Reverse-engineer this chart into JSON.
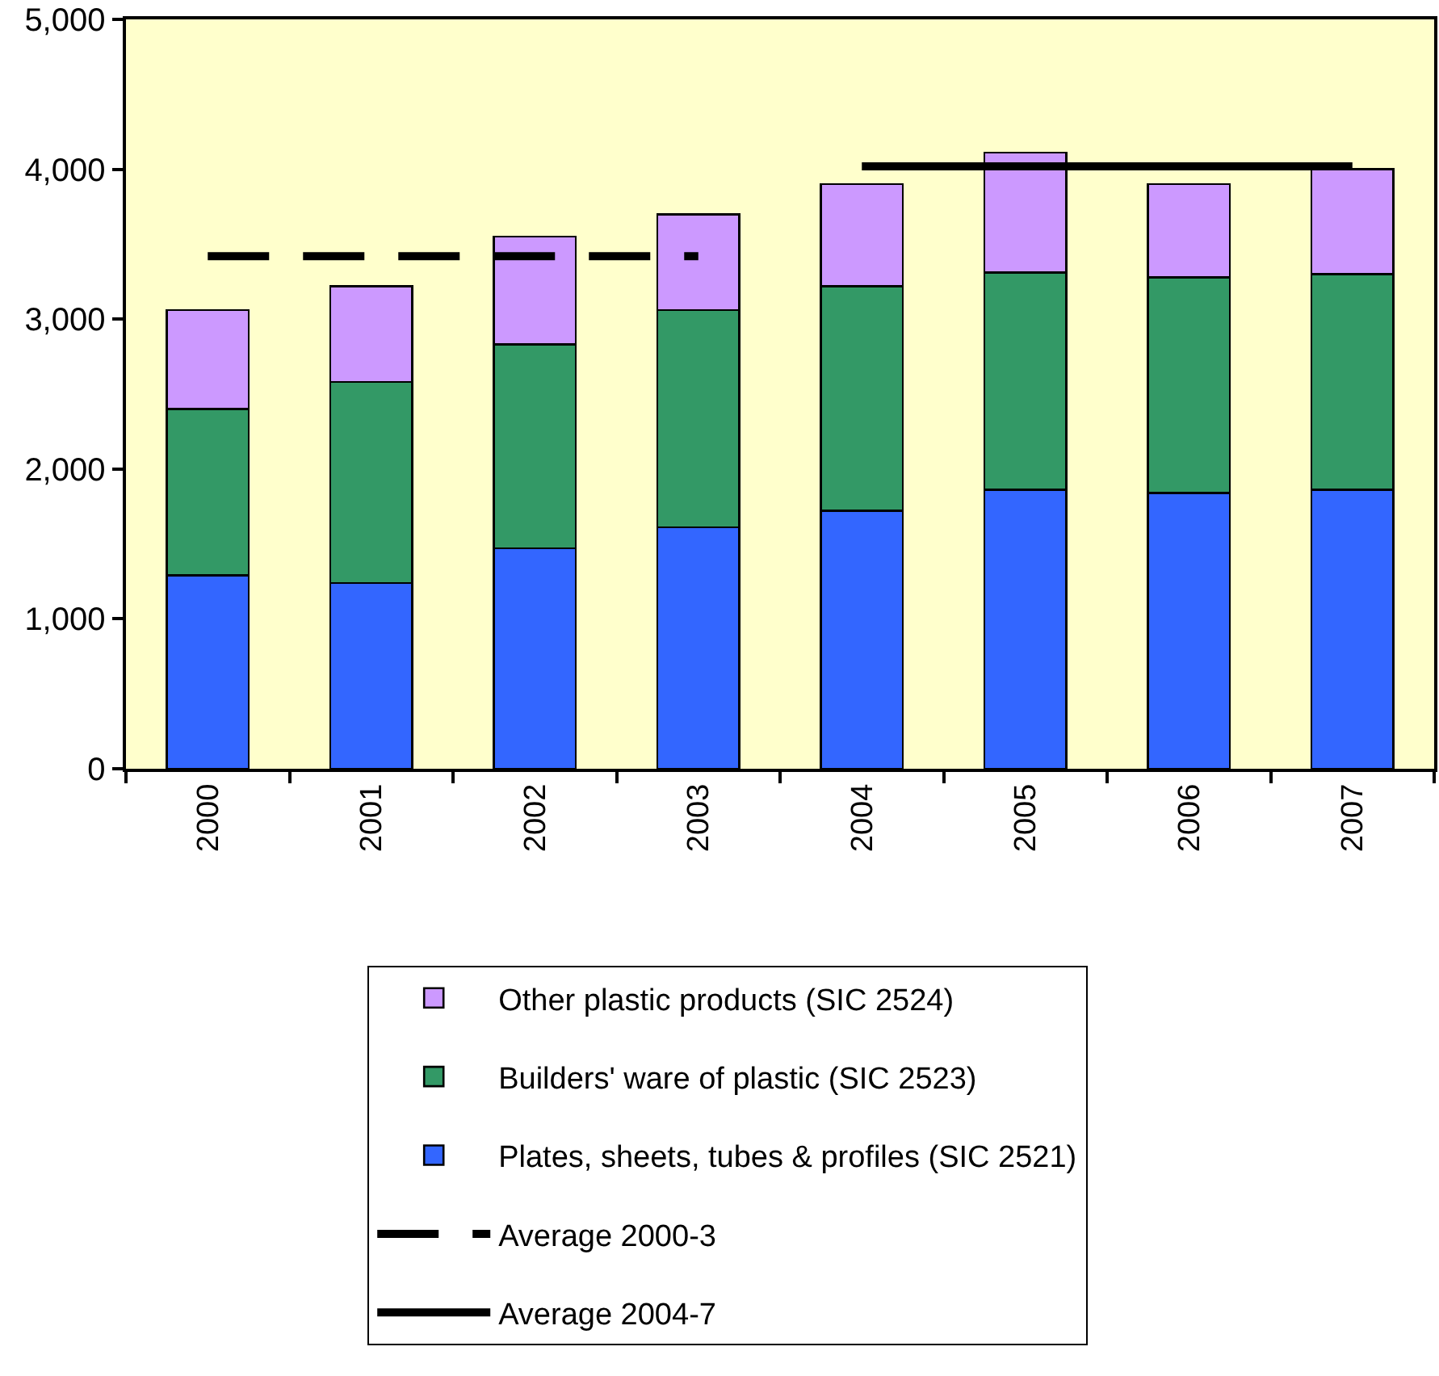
{
  "chart_data": {
    "type": "bar",
    "stacked": true,
    "categories": [
      "2000",
      "2001",
      "2002",
      "2003",
      "2004",
      "2005",
      "2006",
      "2007"
    ],
    "series": [
      {
        "name": "Plates, sheets, tubes & profiles (SIC 2521)",
        "color": "#3366ff",
        "values": [
          1290,
          1240,
          1470,
          1610,
          1720,
          1860,
          1840,
          1860
        ]
      },
      {
        "name": "Builders' ware of plastic (SIC 2523)",
        "color": "#339966",
        "values": [
          1110,
          1340,
          1360,
          1450,
          1500,
          1450,
          1440,
          1440
        ]
      },
      {
        "name": "Other plastic products (SIC 2524)",
        "color": "#cc99ff",
        "values": [
          660,
          640,
          720,
          640,
          680,
          800,
          620,
          700
        ]
      },
      {
        "name": "Average 2000-3",
        "type": "line",
        "line_style": "dashed",
        "color": "#000000",
        "values": [
          3420,
          3420,
          3420,
          3420,
          null,
          null,
          null,
          null
        ]
      },
      {
        "name": "Average 2004-7",
        "type": "line",
        "line_style": "solid",
        "color": "#000000",
        "values": [
          null,
          null,
          null,
          null,
          4020,
          4020,
          4020,
          4020
        ]
      }
    ],
    "ylim": [
      0,
      5000
    ],
    "yticks": [
      0,
      {
        "value": 1000,
        "label": "1,000"
      },
      {
        "value": 2000,
        "label": "2,000"
      },
      {
        "value": 3000,
        "label": "3,000"
      },
      {
        "value": 4000,
        "label": "4,000"
      },
      {
        "value": 5000,
        "label": "5,000"
      }
    ],
    "legend": "bottom"
  }
}
